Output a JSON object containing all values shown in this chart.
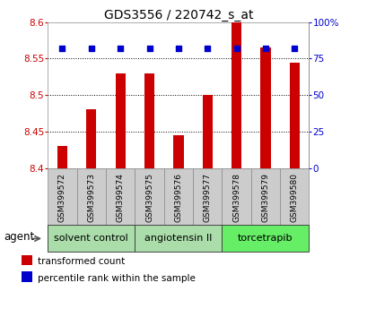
{
  "title": "GDS3556 / 220742_s_at",
  "samples": [
    "GSM399572",
    "GSM399573",
    "GSM399574",
    "GSM399575",
    "GSM399576",
    "GSM399577",
    "GSM399578",
    "GSM399579",
    "GSM399580"
  ],
  "transformed_counts": [
    8.43,
    8.48,
    8.53,
    8.53,
    8.445,
    8.5,
    8.6,
    8.565,
    8.545
  ],
  "percentile_ranks": [
    82,
    82,
    82,
    82,
    82,
    82,
    82,
    82,
    82
  ],
  "ylim_left": [
    8.4,
    8.6
  ],
  "ylim_right": [
    0,
    100
  ],
  "yticks_left": [
    8.4,
    8.45,
    8.5,
    8.55,
    8.6
  ],
  "yticks_right": [
    0,
    25,
    50,
    75,
    100
  ],
  "bar_color": "#cc0000",
  "dot_color": "#0000cc",
  "bar_bottom": 8.4,
  "groups": [
    {
      "label": "solvent control",
      "start": 0,
      "end": 2,
      "color": "#aaddaa"
    },
    {
      "label": "angiotensin II",
      "start": 3,
      "end": 5,
      "color": "#aaddaa"
    },
    {
      "label": "torcetrapib",
      "start": 6,
      "end": 8,
      "color": "#66ee66"
    }
  ],
  "agent_label": "agent",
  "legend_items": [
    {
      "label": "transformed count",
      "color": "#cc0000"
    },
    {
      "label": "percentile rank within the sample",
      "color": "#0000cc"
    }
  ],
  "grid_yticks": [
    8.45,
    8.5,
    8.55
  ],
  "sample_box_color": "#cccccc",
  "sample_box_border": "#888888",
  "group_border": "#444444"
}
